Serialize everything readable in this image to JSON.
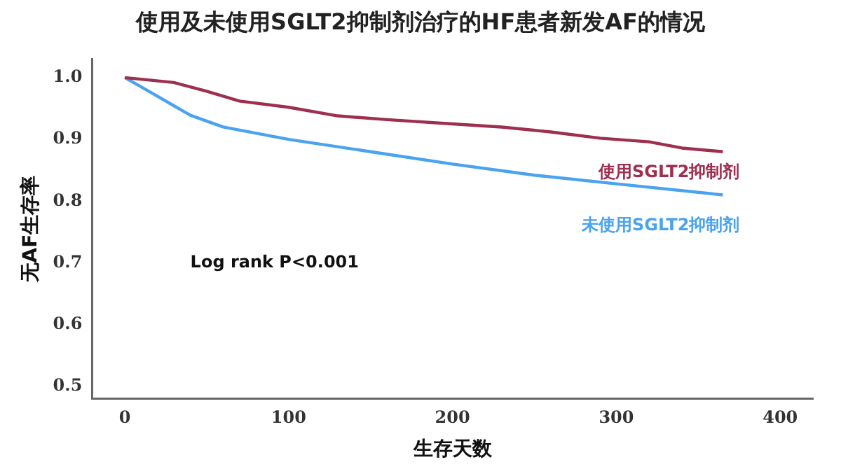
{
  "chart_data": {
    "type": "line",
    "title": "使用及未使用SGLT2抑制剂治疗的HF患者新发AF的情况",
    "xlabel": "生存天数",
    "ylabel": "无AF生存率",
    "annotations": [
      "Log rank P<0.001"
    ],
    "xlim": [
      -20,
      420
    ],
    "xticks": [
      0,
      100,
      200,
      300,
      400
    ],
    "ylim": [
      0.48,
      1.03
    ],
    "yticks": [
      {
        "value": 0.5,
        "label": "0.5"
      },
      {
        "value": 0.6,
        "label": "0.6"
      },
      {
        "value": 0.7,
        "label": "0.7"
      },
      {
        "value": 0.8,
        "label": "0.8"
      },
      {
        "value": 0.9,
        "label": "0.9"
      },
      {
        "value": 1,
        "label": "1.0"
      }
    ],
    "grid": false,
    "legend": false,
    "marker": "none",
    "line_style": "solid",
    "series": [
      {
        "name": "使用SGLT2抑制剂",
        "color": "#9e2f4e",
        "x": [
          0,
          30,
          50,
          70,
          100,
          130,
          160,
          200,
          230,
          260,
          290,
          320,
          340,
          365
        ],
        "values": [
          1.0,
          0.992,
          0.978,
          0.962,
          0.952,
          0.938,
          0.932,
          0.925,
          0.92,
          0.912,
          0.902,
          0.896,
          0.886,
          0.88
        ]
      },
      {
        "name": "未使用SGLT2抑制剂",
        "color": "#4aa3ef",
        "x": [
          0,
          10,
          40,
          60,
          100,
          150,
          200,
          250,
          300,
          365
        ],
        "values": [
          1.0,
          0.985,
          0.939,
          0.92,
          0.9,
          0.88,
          0.86,
          0.842,
          0.828,
          0.81
        ]
      }
    ]
  }
}
